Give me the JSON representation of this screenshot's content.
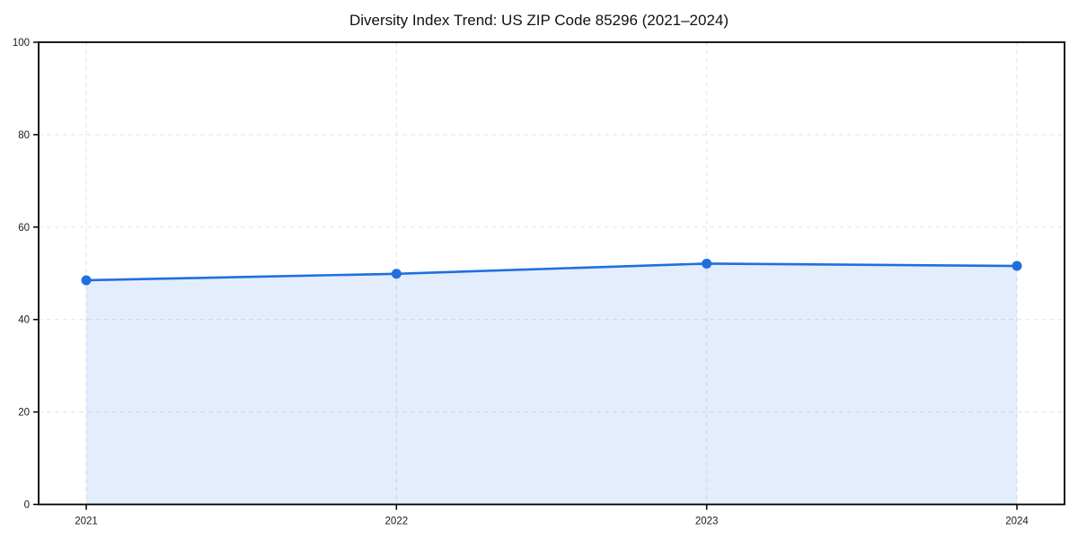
{
  "chart_data": {
    "type": "area",
    "title": "Diversity Index Trend: US ZIP Code 85296 (2021–2024)",
    "categories": [
      "2021",
      "2022",
      "2023",
      "2024"
    ],
    "series": [
      {
        "name": "Diversity Index",
        "values": [
          48.5,
          49.9,
          52.1,
          51.6
        ]
      }
    ],
    "xlabel": "",
    "ylabel": "",
    "ylim": [
      0,
      100
    ],
    "yticks": [
      0,
      20,
      40,
      60,
      80,
      100
    ],
    "grid": "dashed-both-axes",
    "legend": "none",
    "colors": {
      "line": "#1f6fe0",
      "marker": "#1f6fe0",
      "fill": "#1f6fe0",
      "fill_opacity": 0.12,
      "grid": "#e3e3e3",
      "axis": "#000000",
      "tick_text": "#1a1a1a",
      "background": "#ffffff"
    }
  }
}
